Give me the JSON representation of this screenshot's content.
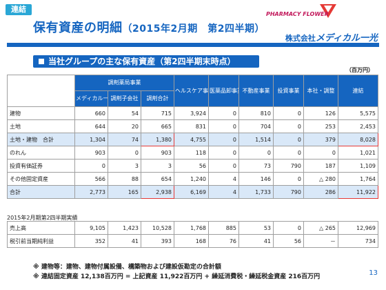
{
  "tag": "連結",
  "title": {
    "main": "保有資産の明細",
    "period": "（2015年2月期　第2四半期）"
  },
  "logo": {
    "text": "PHARMACY FLOWER"
  },
  "company": {
    "prefix": "株式会社",
    "brand": "メディカル一光"
  },
  "section_band": "当社グループの主な保有資産（第2四半期末時点）",
  "unit": "（百万円）",
  "table1": {
    "group_header": "調剤薬局事業",
    "columns": [
      "メディカル一光",
      "調剤子会社",
      "調剤合計",
      "ヘルスケア事業",
      "医薬品卸事業",
      "不動産事業",
      "投資事業",
      "本社・調整",
      "連結"
    ],
    "rows": [
      {
        "label": "建物",
        "values": [
          "660",
          "54",
          "715",
          "3,924",
          "0",
          "810",
          "0",
          "126",
          "5,575"
        ]
      },
      {
        "label": "土地",
        "values": [
          "644",
          "20",
          "665",
          "831",
          "0",
          "704",
          "0",
          "253",
          "2,453"
        ]
      },
      {
        "label": "土地・建物　合計",
        "values": [
          "1,304",
          "74",
          "1,380",
          "4,755",
          "0",
          "1,514",
          "0",
          "379",
          "8,028"
        ]
      },
      {
        "label": "のれん",
        "values": [
          "903",
          "0",
          "903",
          "118",
          "0",
          "0",
          "0",
          "0",
          "1,021"
        ]
      },
      {
        "label": "投資有価証券",
        "values": [
          "0",
          "3",
          "3",
          "56",
          "0",
          "73",
          "790",
          "187",
          "1,109"
        ]
      },
      {
        "label": "その他固定資産",
        "values": [
          "566",
          "88",
          "654",
          "1,240",
          "4",
          "146",
          "0",
          "△ 280",
          "1,764"
        ]
      },
      {
        "label": "合計",
        "values": [
          "2,773",
          "165",
          "2,938",
          "6,169",
          "4",
          "1,733",
          "790",
          "286",
          "11,922"
        ]
      }
    ]
  },
  "period_label": "2015年2月期第2四半期実績",
  "table2": {
    "rows": [
      {
        "label": "売上高",
        "values": [
          "9,105",
          "1,423",
          "10,528",
          "1,768",
          "885",
          "53",
          "0",
          "△ 265",
          "12,969"
        ]
      },
      {
        "label": "税引前当期純利益",
        "values": [
          "352",
          "41",
          "393",
          "168",
          "76",
          "41",
          "56",
          "－",
          "734"
        ]
      }
    ]
  },
  "notes": [
    "※ 建物等：建物、建物付属設備、構築物および建設仮勘定の合計額",
    "※ 連結固定資産 12,138百万円 = 上記資産 11,922百万円 + 繰延消費税・繰延税金資産 216百万円"
  ],
  "page_number": "13",
  "colors": {
    "header_blue": "#1565c0",
    "highlight": "#d9e8f8",
    "red_box": "#e53935",
    "tag": "#2aa7d6"
  }
}
